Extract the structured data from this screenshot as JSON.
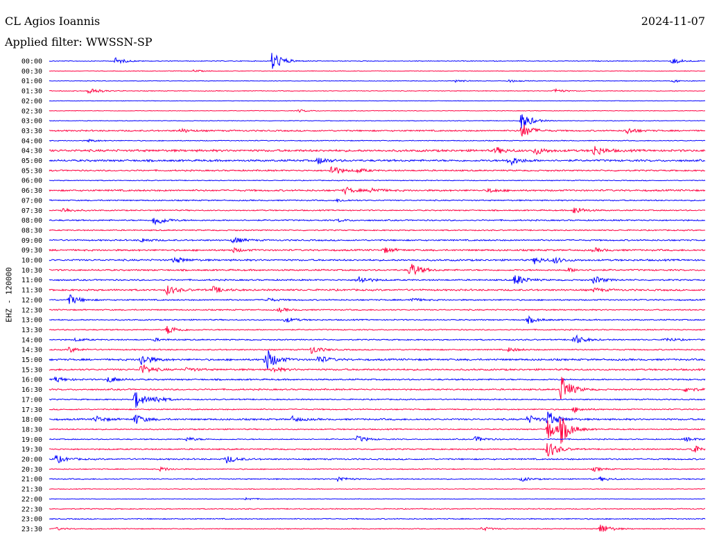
{
  "header": {
    "station": "CL Agios Ioannis",
    "date": "2024-11-07",
    "filter": "Applied filter: WWSSN-SP"
  },
  "chart_data": {
    "type": "line",
    "ylabel": "EHZ - 120000",
    "colors": [
      "#0000ff",
      "#ff0040"
    ],
    "rows": [
      {
        "label": "00:00",
        "color": "#0000ff",
        "noise": 0.6,
        "events": [
          [
            0.1,
            5
          ],
          [
            0.34,
            16
          ],
          [
            0.95,
            5
          ]
        ]
      },
      {
        "label": "00:30",
        "color": "#ff0040",
        "noise": 0.5,
        "events": [
          [
            0.22,
            1.5
          ]
        ]
      },
      {
        "label": "01:00",
        "color": "#0000ff",
        "noise": 0.5,
        "events": [
          [
            0.62,
            2
          ],
          [
            0.7,
            2
          ],
          [
            0.95,
            2
          ]
        ]
      },
      {
        "label": "01:30",
        "color": "#ff0040",
        "noise": 0.6,
        "events": [
          [
            0.06,
            6
          ],
          [
            0.77,
            3
          ]
        ]
      },
      {
        "label": "02:00",
        "color": "#0000ff",
        "noise": 0.4,
        "events": []
      },
      {
        "label": "02:30",
        "color": "#ff0040",
        "noise": 0.5,
        "events": [
          [
            0.38,
            2
          ]
        ]
      },
      {
        "label": "03:00",
        "color": "#0000ff",
        "noise": 0.5,
        "events": [
          [
            0.72,
            14
          ]
        ]
      },
      {
        "label": "03:30",
        "color": "#ff0040",
        "noise": 1.2,
        "events": [
          [
            0.72,
            12
          ],
          [
            0.2,
            3
          ],
          [
            0.88,
            5
          ]
        ]
      },
      {
        "label": "04:00",
        "color": "#0000ff",
        "noise": 0.7,
        "events": [
          [
            0.06,
            2
          ]
        ]
      },
      {
        "label": "04:30",
        "color": "#ff0040",
        "noise": 1.8,
        "events": [
          [
            0.68,
            5
          ],
          [
            0.74,
            6
          ],
          [
            0.83,
            8
          ]
        ]
      },
      {
        "label": "05:00",
        "color": "#0000ff",
        "noise": 1.6,
        "events": [
          [
            0.41,
            5
          ],
          [
            0.7,
            8
          ]
        ]
      },
      {
        "label": "05:30",
        "color": "#ff0040",
        "noise": 1.2,
        "events": [
          [
            0.43,
            8
          ],
          [
            0.47,
            3
          ]
        ]
      },
      {
        "label": "06:00",
        "color": "#0000ff",
        "noise": 0.7,
        "events": []
      },
      {
        "label": "06:30",
        "color": "#ff0040",
        "noise": 1.4,
        "events": [
          [
            0.45,
            5
          ],
          [
            0.49,
            4
          ],
          [
            0.67,
            3
          ]
        ]
      },
      {
        "label": "07:00",
        "color": "#0000ff",
        "noise": 1.0,
        "events": [
          [
            0.44,
            2
          ]
        ]
      },
      {
        "label": "07:30",
        "color": "#ff0040",
        "noise": 1.0,
        "events": [
          [
            0.02,
            4
          ],
          [
            0.8,
            6
          ]
        ]
      },
      {
        "label": "08:00",
        "color": "#0000ff",
        "noise": 1.1,
        "events": [
          [
            0.16,
            9
          ],
          [
            0.44,
            2
          ]
        ]
      },
      {
        "label": "08:30",
        "color": "#ff0040",
        "noise": 1.0,
        "events": []
      },
      {
        "label": "09:00",
        "color": "#0000ff",
        "noise": 1.2,
        "events": [
          [
            0.14,
            3
          ],
          [
            0.28,
            5
          ]
        ]
      },
      {
        "label": "09:30",
        "color": "#ff0040",
        "noise": 1.4,
        "events": [
          [
            0.28,
            3
          ],
          [
            0.51,
            4
          ],
          [
            0.83,
            3
          ]
        ]
      },
      {
        "label": "10:00",
        "color": "#0000ff",
        "noise": 1.4,
        "events": [
          [
            0.19,
            5
          ],
          [
            0.74,
            5
          ],
          [
            0.77,
            4
          ]
        ]
      },
      {
        "label": "10:30",
        "color": "#ff0040",
        "noise": 1.3,
        "events": [
          [
            0.55,
            12
          ],
          [
            0.79,
            3
          ]
        ]
      },
      {
        "label": "11:00",
        "color": "#0000ff",
        "noise": 1.2,
        "events": [
          [
            0.47,
            7
          ],
          [
            0.71,
            9
          ],
          [
            0.83,
            6
          ]
        ]
      },
      {
        "label": "11:30",
        "color": "#ff0040",
        "noise": 1.4,
        "events": [
          [
            0.18,
            7
          ],
          [
            0.25,
            5
          ],
          [
            0.83,
            3
          ]
        ]
      },
      {
        "label": "12:00",
        "color": "#0000ff",
        "noise": 1.1,
        "events": [
          [
            0.03,
            8
          ],
          [
            0.33,
            3
          ],
          [
            0.55,
            3
          ]
        ]
      },
      {
        "label": "12:30",
        "color": "#ff0040",
        "noise": 1.0,
        "events": [
          [
            0.35,
            3
          ]
        ]
      },
      {
        "label": "13:00",
        "color": "#0000ff",
        "noise": 1.0,
        "events": [
          [
            0.36,
            4
          ],
          [
            0.73,
            5
          ]
        ]
      },
      {
        "label": "13:30",
        "color": "#ff0040",
        "noise": 0.9,
        "events": [
          [
            0.18,
            7
          ]
        ]
      },
      {
        "label": "14:00",
        "color": "#0000ff",
        "noise": 1.0,
        "events": [
          [
            0.04,
            2
          ],
          [
            0.16,
            2
          ],
          [
            0.8,
            8
          ],
          [
            0.94,
            3
          ]
        ]
      },
      {
        "label": "14:30",
        "color": "#ff0040",
        "noise": 1.0,
        "events": [
          [
            0.03,
            4
          ],
          [
            0.4,
            6
          ],
          [
            0.7,
            3
          ]
        ]
      },
      {
        "label": "15:00",
        "color": "#0000ff",
        "noise": 1.5,
        "events": [
          [
            0.14,
            9
          ],
          [
            0.33,
            18
          ],
          [
            0.41,
            6
          ]
        ]
      },
      {
        "label": "15:30",
        "color": "#ff0040",
        "noise": 1.4,
        "events": [
          [
            0.14,
            8
          ],
          [
            0.21,
            3
          ],
          [
            0.34,
            4
          ]
        ]
      },
      {
        "label": "16:00",
        "color": "#0000ff",
        "noise": 1.2,
        "events": [
          [
            0.01,
            4
          ],
          [
            0.09,
            5
          ]
        ]
      },
      {
        "label": "16:30",
        "color": "#ff0040",
        "noise": 1.2,
        "events": [
          [
            0.78,
            22
          ],
          [
            0.97,
            4
          ]
        ]
      },
      {
        "label": "17:00",
        "color": "#0000ff",
        "noise": 1.0,
        "events": [
          [
            0.13,
            14
          ],
          [
            0.16,
            5
          ]
        ]
      },
      {
        "label": "17:30",
        "color": "#ff0040",
        "noise": 1.0,
        "events": [
          [
            0.8,
            4
          ]
        ]
      },
      {
        "label": "18:00",
        "color": "#0000ff",
        "noise": 1.4,
        "events": [
          [
            0.07,
            5
          ],
          [
            0.13,
            8
          ],
          [
            0.37,
            4
          ],
          [
            0.73,
            6
          ],
          [
            0.76,
            12
          ]
        ]
      },
      {
        "label": "18:30",
        "color": "#ff0040",
        "noise": 1.0,
        "events": [
          [
            0.76,
            16
          ],
          [
            0.78,
            18
          ]
        ]
      },
      {
        "label": "19:00",
        "color": "#0000ff",
        "noise": 0.9,
        "events": [
          [
            0.21,
            3
          ],
          [
            0.47,
            5
          ],
          [
            0.65,
            4
          ],
          [
            0.97,
            3
          ]
        ]
      },
      {
        "label": "19:30",
        "color": "#ff0040",
        "noise": 1.1,
        "events": [
          [
            0.76,
            14
          ],
          [
            0.98,
            6
          ]
        ]
      },
      {
        "label": "20:00",
        "color": "#0000ff",
        "noise": 1.2,
        "events": [
          [
            0.01,
            6
          ],
          [
            0.27,
            6
          ]
        ]
      },
      {
        "label": "20:30",
        "color": "#ff0040",
        "noise": 0.8,
        "events": [
          [
            0.17,
            3
          ],
          [
            0.83,
            3
          ]
        ]
      },
      {
        "label": "21:00",
        "color": "#0000ff",
        "noise": 0.9,
        "events": [
          [
            0.44,
            4
          ],
          [
            0.72,
            3
          ],
          [
            0.84,
            3
          ]
        ]
      },
      {
        "label": "21:30",
        "color": "#ff0040",
        "noise": 0.6,
        "events": []
      },
      {
        "label": "22:00",
        "color": "#0000ff",
        "noise": 0.5,
        "events": [
          [
            0.3,
            2
          ]
        ]
      },
      {
        "label": "22:30",
        "color": "#ff0040",
        "noise": 0.8,
        "events": []
      },
      {
        "label": "23:00",
        "color": "#0000ff",
        "noise": 0.9,
        "events": []
      },
      {
        "label": "23:30",
        "color": "#ff0040",
        "noise": 0.7,
        "events": [
          [
            0.01,
            2
          ],
          [
            0.66,
            3
          ],
          [
            0.84,
            8
          ]
        ]
      }
    ]
  }
}
